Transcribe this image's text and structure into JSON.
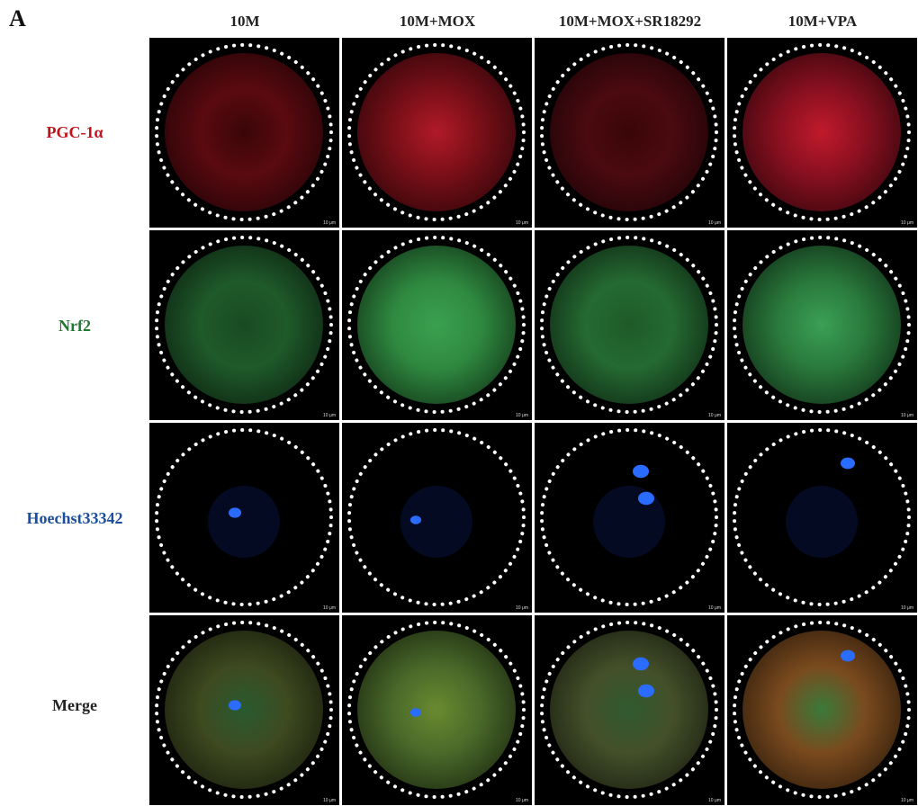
{
  "figure": {
    "panel_label": "A",
    "columns": [
      "10M",
      "10M+MOX",
      "10M+MOX+SR18292",
      "10M+VPA"
    ],
    "rows": [
      {
        "label": "PGC-1α",
        "color": "#c0141c"
      },
      {
        "label": "Nrf2",
        "color": "#1e7a2e"
      },
      {
        "label": "Hoechst33342",
        "color": "#1a4fa0"
      },
      {
        "label": "Merge",
        "color": "#222222"
      }
    ],
    "scale_bar_label": "10 μm"
  }
}
